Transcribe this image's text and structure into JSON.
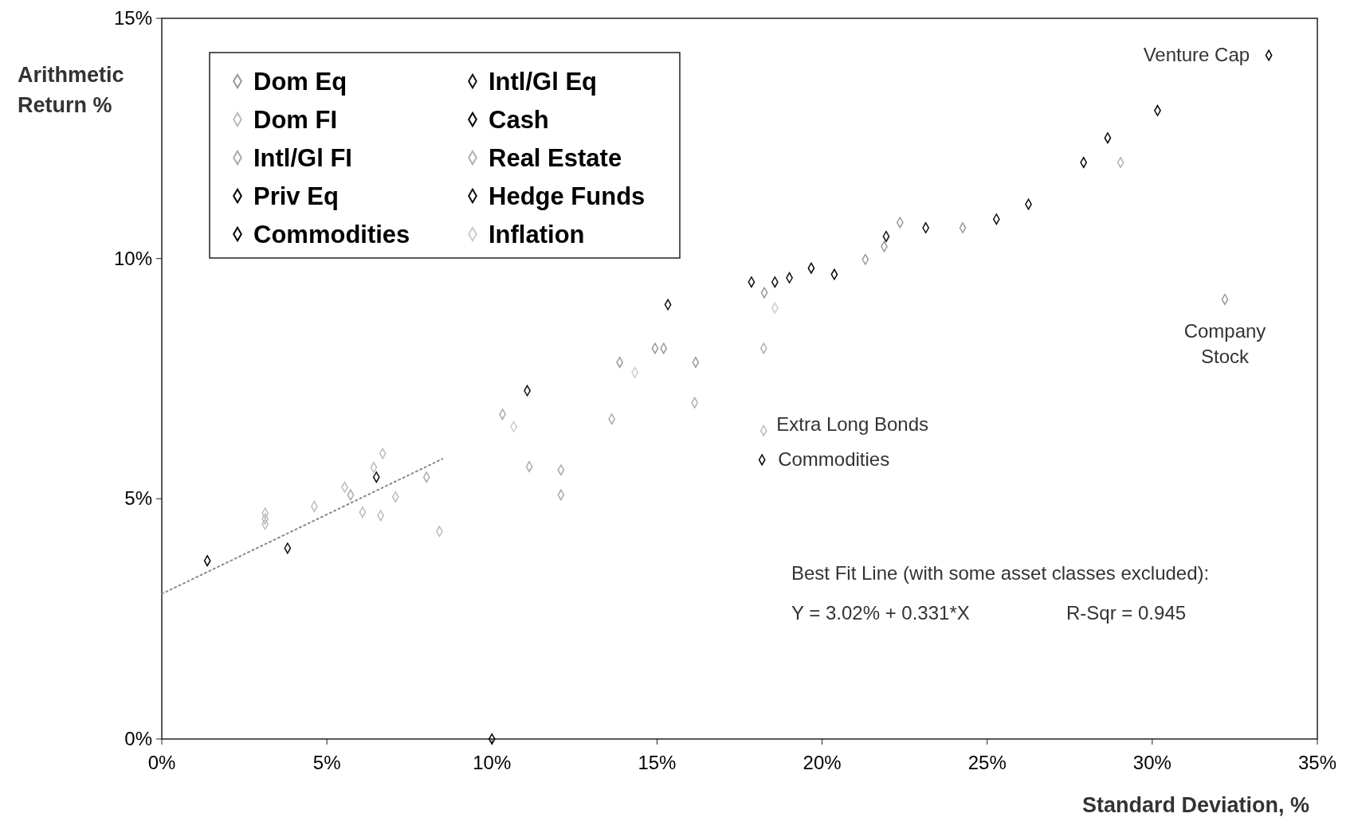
{
  "chart_data": {
    "type": "scatter",
    "xlabel": "Standard Deviation, %",
    "ylabel": "Arithmetic Return %",
    "xlim": [
      0,
      35
    ],
    "ylim": [
      0,
      15
    ],
    "xticks": [
      {
        "value": 0,
        "label": "0%"
      },
      {
        "value": 5,
        "label": "5%"
      },
      {
        "value": 10,
        "label": "10%"
      },
      {
        "value": 15,
        "label": "15%"
      },
      {
        "value": 20,
        "label": "20%"
      },
      {
        "value": 25,
        "label": "25%"
      },
      {
        "value": 30,
        "label": "30%"
      },
      {
        "value": 35,
        "label": "35%"
      }
    ],
    "yticks": [
      {
        "value": 0,
        "label": "0%"
      },
      {
        "value": 5,
        "label": "5%"
      },
      {
        "value": 10,
        "label": "10%"
      },
      {
        "value": 15,
        "label": "15%"
      }
    ],
    "grid": false,
    "legend": "top left",
    "marker": "diamond",
    "series": [
      {
        "name": "Dom Eq",
        "color": "#999999",
        "x": [
          13.87,
          14.94,
          15.2,
          16.17,
          18.25,
          21.31,
          21.88,
          22.36,
          24.26,
          32.2
        ],
        "values": [
          7.84,
          8.13,
          8.13,
          7.84,
          9.29,
          9.98,
          10.25,
          10.75,
          10.64,
          9.15
        ]
      },
      {
        "name": "Dom FI",
        "color": "#bbbbbb",
        "x": [
          3.13,
          3.13,
          3.13,
          4.62,
          5.54,
          6.08,
          6.42,
          6.69,
          6.63,
          7.08,
          8.41,
          18.23
        ],
        "values": [
          4.7,
          4.58,
          4.47,
          4.84,
          5.24,
          4.72,
          5.65,
          5.94,
          4.65,
          5.04,
          4.32,
          6.42
        ]
      },
      {
        "name": "Intl/Gl FI",
        "color": "#aaaaaa",
        "x": [
          5.72,
          8.02,
          10.32,
          11.13,
          12.09,
          12.09,
          13.63
        ],
        "values": [
          5.08,
          5.45,
          6.76,
          5.67,
          5.6,
          5.08,
          6.66
        ]
      },
      {
        "name": "Priv Eq",
        "color": "#000000",
        "x": [
          19.67,
          20.37,
          27.92,
          28.65,
          30.16,
          33.53
        ],
        "values": [
          9.8,
          9.67,
          12.0,
          12.51,
          13.08,
          14.23
        ]
      },
      {
        "name": "Commodities",
        "color": "#000000",
        "x": [
          10.0,
          18.18
        ],
        "values": [
          0,
          5.81
        ]
      },
      {
        "name": "Intl/Gl Eq",
        "color": "#111111",
        "x": [
          15.33,
          17.86,
          18.57,
          19.01,
          21.94,
          23.14,
          25.28,
          26.25
        ],
        "values": [
          9.04,
          9.51,
          9.51,
          9.6,
          10.46,
          10.64,
          10.82,
          11.13
        ]
      },
      {
        "name": "Cash",
        "color": "#000000",
        "x": [
          1.38
        ],
        "values": [
          3.71
        ]
      },
      {
        "name": "Real Estate",
        "color": "#b0b0b0",
        "x": [
          16.14,
          18.23,
          29.04
        ],
        "values": [
          7.0,
          8.13,
          12.0
        ]
      },
      {
        "name": "Hedge Funds",
        "color": "#111111",
        "x": [
          3.81,
          6.5,
          11.07
        ],
        "values": [
          3.97,
          5.45,
          7.25
        ]
      },
      {
        "name": "Inflation",
        "color": "#cccccc",
        "x": [
          10.66,
          14.33,
          18.57
        ],
        "values": [
          6.5,
          7.63,
          8.97
        ]
      },
      {
        "type": "line",
        "color": "#888888",
        "line_style": "dotted",
        "marker": "none",
        "x": [
          0,
          8.5
        ],
        "values": [
          3.02,
          5.83
        ]
      }
    ],
    "annotations": [
      {
        "text": "Venture Cap",
        "x": 33.53,
        "y": 14.23
      },
      {
        "text": "Company Stock",
        "x": 32.2,
        "y": 9.15
      },
      {
        "text": "Extra Long Bonds",
        "x": 18.23,
        "y": 6.42
      },
      {
        "text": "Commodities",
        "x": 18.18,
        "y": 5.81
      },
      "Best Fit Line (with some asset classes excluded):",
      "Y = 3.02% + 0.331*X",
      "R-Sqr = 0.945"
    ]
  }
}
